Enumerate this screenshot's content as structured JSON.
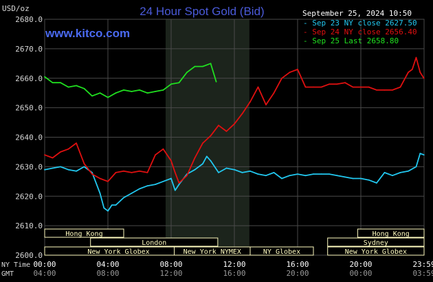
{
  "title": "24 Hour Spot Gold (Bid)",
  "brand": "www.kitco.com",
  "unit_label": "USD/oz",
  "timestamp": "September 25, 2024 10:50",
  "colors": {
    "background": "#000000",
    "title": "#4a5ad8",
    "brand": "#4a6af0",
    "grid": "#4a4a4a",
    "text": "#d8d8d8",
    "highlight_band": "#1c241c",
    "market_bar": "#fffcc0",
    "series_sep23": "#22c8f0",
    "series_sep24": "#e01010",
    "series_sep25": "#20e020"
  },
  "chart_data": {
    "type": "line",
    "title": "24 Hour Spot Gold (Bid)",
    "ylabel": "USD/oz",
    "ylim": [
      2600,
      2680
    ],
    "xlim": [
      0,
      24
    ],
    "y_ticks": [
      "2680.0",
      "2670.0",
      "2660.0",
      "2650.0",
      "2640.0",
      "2630.0",
      "2620.0",
      "2610.0",
      "2600.0"
    ],
    "x_axis_rows": [
      {
        "label": "NY Time",
        "ticks": [
          "00:00",
          "04:00",
          "08:00",
          "12:00",
          "16:00",
          "20:00",
          "23:59"
        ]
      },
      {
        "label": "GMT",
        "ticks": [
          "04:00",
          "08:00",
          "12:00",
          "16:00",
          "20:00",
          "00:00",
          "03:59"
        ]
      }
    ],
    "grid": true,
    "highlight_band": [
      7.65,
      12.95
    ],
    "legend_position": "top-right",
    "series": [
      {
        "name": "Sep 23 NY close 2627.50",
        "color": "#22c8f0",
        "x": [
          0,
          0.5,
          1,
          1.5,
          2,
          2.5,
          3,
          3.5,
          3.75,
          4,
          4.25,
          4.5,
          5,
          5.5,
          6,
          6.5,
          7,
          7.5,
          8,
          8.25,
          8.5,
          9,
          9.5,
          10,
          10.25,
          10.5,
          11,
          11.5,
          12,
          12.5,
          13,
          13.5,
          14,
          14.5,
          15,
          15.5,
          16,
          16.5,
          17,
          17.5,
          18,
          18.5,
          19,
          19.5,
          20,
          20.5,
          21,
          21.5,
          22,
          22.5,
          23,
          23.5,
          23.75,
          23.99
        ],
        "values": [
          2629,
          2629.5,
          2630,
          2629,
          2628.5,
          2630,
          2628,
          2621,
          2616,
          2615,
          2617,
          2617,
          2619.5,
          2621,
          2622.5,
          2623.5,
          2624,
          2625,
          2626,
          2622,
          2624,
          2627.5,
          2629,
          2631,
          2633.5,
          2632,
          2628,
          2629.5,
          2629,
          2628,
          2628.5,
          2627.5,
          2627,
          2628,
          2626,
          2627,
          2627.5,
          2627,
          2627.5,
          2627.5,
          2627.5,
          2627,
          2626.5,
          2626,
          2626,
          2625.5,
          2624.5,
          2628,
          2627,
          2628,
          2628.5,
          2630,
          2634.5,
          2634
        ]
      },
      {
        "name": "Sep 24 NY close 2656.40",
        "color": "#e01010",
        "x": [
          0,
          0.5,
          1,
          1.5,
          2,
          2.5,
          3,
          3.5,
          4,
          4.5,
          5,
          5.5,
          6,
          6.5,
          7,
          7.5,
          8,
          8.25,
          8.5,
          9,
          9.5,
          10,
          10.5,
          11,
          11.5,
          12,
          12.5,
          13,
          13.5,
          14,
          14.5,
          15,
          15.5,
          16,
          16.5,
          17,
          17.5,
          18,
          18.5,
          19,
          19.5,
          20,
          20.5,
          21,
          21.5,
          22,
          22.5,
          23,
          23.25,
          23.5,
          23.75,
          23.99
        ],
        "values": [
          2634,
          2633,
          2635,
          2636,
          2638,
          2631,
          2627.5,
          2626,
          2625,
          2628,
          2628.5,
          2628,
          2628.5,
          2628,
          2634,
          2636,
          2632,
          2628,
          2624.5,
          2627,
          2633,
          2638,
          2640.5,
          2644,
          2642,
          2644.5,
          2648,
          2652,
          2657,
          2651,
          2655,
          2660,
          2662,
          2663,
          2657,
          2657,
          2657,
          2658,
          2658,
          2658.5,
          2657,
          2657,
          2657,
          2656,
          2656,
          2656,
          2657,
          2662,
          2663,
          2667,
          2662,
          2660
        ]
      },
      {
        "name": "Sep 25 Last 2658.80",
        "color": "#20e020",
        "x": [
          0,
          0.5,
          1,
          1.5,
          2,
          2.5,
          3,
          3.5,
          4,
          4.5,
          5,
          5.5,
          6,
          6.5,
          7,
          7.5,
          8,
          8.5,
          9,
          9.5,
          10,
          10.5,
          10.85
        ],
        "values": [
          2660.5,
          2658.5,
          2658.5,
          2657,
          2657.5,
          2656.5,
          2654,
          2655,
          2653.5,
          2655,
          2656,
          2655.5,
          2656,
          2655,
          2655.5,
          2656,
          2658,
          2658.5,
          2662,
          2664,
          2664,
          2665,
          2658.8
        ]
      }
    ]
  },
  "market_sessions": [
    {
      "label": "Hong Kong",
      "start": 0,
      "end": 5
    },
    {
      "label": "London",
      "start": 2.9,
      "end": 10.95
    },
    {
      "label": "New York Globex",
      "start": 0,
      "end": 9.35
    },
    {
      "label": "New York NYMEX",
      "start": 8.2,
      "end": 13
    },
    {
      "label": "NY Globex",
      "start": 13,
      "end": 17
    },
    {
      "label": "Hong Kong",
      "start": 19.8,
      "end": 24
    },
    {
      "label": "Sydney",
      "start": 17.9,
      "end": 24
    },
    {
      "label": "New York Globex",
      "start": 17.9,
      "end": 24
    }
  ]
}
